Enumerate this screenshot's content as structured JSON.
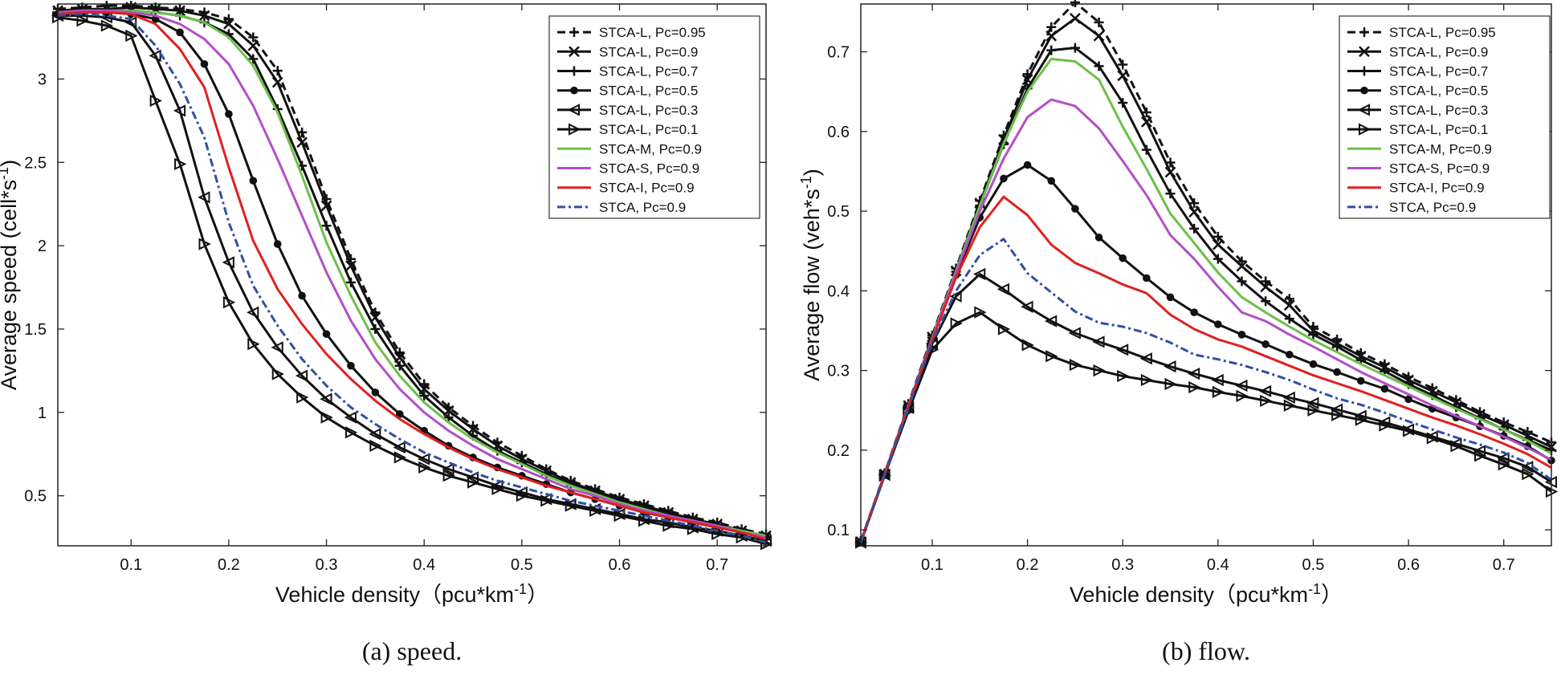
{
  "chart_data": [
    {
      "type": "line",
      "caption": "(a) speed.",
      "xlabel": "Vehicle density（pcu*km",
      "xlabel_sup": "-1",
      "xlabel_end": "）",
      "ylabel": "Average speed (cell*s",
      "ylabel_sup": "-1",
      "ylabel_end": ")",
      "xlim": [
        0.025,
        0.75
      ],
      "ylim": [
        0.2,
        3.45
      ],
      "xticks": [
        0.1,
        0.2,
        0.3,
        0.4,
        0.5,
        0.6,
        0.7
      ],
      "yticks": [
        0.5,
        1,
        1.5,
        2,
        2.5,
        3
      ],
      "grid": false,
      "legend_position": "top-right",
      "x": [
        0.025,
        0.05,
        0.075,
        0.1,
        0.125,
        0.15,
        0.175,
        0.2,
        0.225,
        0.25,
        0.275,
        0.3,
        0.325,
        0.35,
        0.375,
        0.4,
        0.425,
        0.45,
        0.475,
        0.5,
        0.525,
        0.55,
        0.575,
        0.6,
        0.625,
        0.65,
        0.675,
        0.7,
        0.725,
        0.75
      ],
      "series": [
        {
          "name": "STCA-L, Pc=0.95",
          "color": "#111111",
          "dash": "10,6",
          "marker": "plus",
          "values": [
            3.42,
            3.43,
            3.44,
            3.44,
            3.43,
            3.42,
            3.4,
            3.36,
            3.25,
            3.05,
            2.68,
            2.28,
            1.92,
            1.6,
            1.36,
            1.17,
            1.03,
            0.92,
            0.82,
            0.74,
            0.66,
            0.59,
            0.54,
            0.49,
            0.45,
            0.41,
            0.37,
            0.34,
            0.3,
            0.27
          ]
        },
        {
          "name": "STCA-L, Pc=0.9",
          "color": "#111111",
          "dash": "",
          "marker": "x",
          "values": [
            3.41,
            3.42,
            3.42,
            3.43,
            3.42,
            3.41,
            3.38,
            3.33,
            3.2,
            2.98,
            2.62,
            2.24,
            1.88,
            1.57,
            1.33,
            1.14,
            1.01,
            0.9,
            0.8,
            0.72,
            0.65,
            0.58,
            0.53,
            0.48,
            0.44,
            0.4,
            0.36,
            0.33,
            0.29,
            0.26
          ]
        },
        {
          "name": "STCA-L, Pc=0.7",
          "color": "#111111",
          "dash": "",
          "marker": "plus",
          "values": [
            3.4,
            3.41,
            3.41,
            3.41,
            3.4,
            3.38,
            3.34,
            3.27,
            3.12,
            2.82,
            2.48,
            2.12,
            1.78,
            1.5,
            1.28,
            1.1,
            0.97,
            0.86,
            0.77,
            0.7,
            0.63,
            0.57,
            0.52,
            0.47,
            0.43,
            0.39,
            0.35,
            0.32,
            0.28,
            0.25
          ]
        },
        {
          "name": "STCA-L, Pc=0.5",
          "color": "#111111",
          "dash": "",
          "marker": "dot",
          "values": [
            3.39,
            3.4,
            3.4,
            3.39,
            3.36,
            3.28,
            3.09,
            2.79,
            2.39,
            2.01,
            1.7,
            1.47,
            1.28,
            1.12,
            0.99,
            0.89,
            0.8,
            0.73,
            0.67,
            0.62,
            0.57,
            0.52,
            0.48,
            0.44,
            0.4,
            0.37,
            0.34,
            0.31,
            0.28,
            0.25
          ]
        },
        {
          "name": "STCA-L, Pc=0.3",
          "color": "#111111",
          "dash": "",
          "marker": "tri-left",
          "values": [
            3.38,
            3.38,
            3.37,
            3.34,
            3.14,
            2.81,
            2.29,
            1.9,
            1.6,
            1.39,
            1.22,
            1.08,
            0.97,
            0.87,
            0.79,
            0.72,
            0.66,
            0.61,
            0.56,
            0.52,
            0.48,
            0.45,
            0.42,
            0.39,
            0.36,
            0.34,
            0.31,
            0.29,
            0.26,
            0.23
          ]
        },
        {
          "name": "STCA-L, Pc=0.1",
          "color": "#111111",
          "dash": "",
          "marker": "tri-right",
          "values": [
            3.37,
            3.35,
            3.32,
            3.26,
            2.87,
            2.49,
            2.01,
            1.66,
            1.41,
            1.23,
            1.09,
            0.97,
            0.88,
            0.8,
            0.73,
            0.67,
            0.62,
            0.58,
            0.54,
            0.5,
            0.47,
            0.44,
            0.41,
            0.38,
            0.35,
            0.32,
            0.3,
            0.27,
            0.25,
            0.21
          ]
        },
        {
          "name": "STCA-M, Pc=0.9",
          "color": "#6cc04a",
          "dash": "",
          "marker": "none",
          "values": [
            3.4,
            3.41,
            3.41,
            3.41,
            3.4,
            3.38,
            3.34,
            3.25,
            3.08,
            2.8,
            2.42,
            2.02,
            1.7,
            1.42,
            1.22,
            1.06,
            0.94,
            0.84,
            0.76,
            0.69,
            0.62,
            0.56,
            0.51,
            0.46,
            0.42,
            0.38,
            0.35,
            0.32,
            0.29,
            0.26
          ]
        },
        {
          "name": "STCA-S, Pc=0.9",
          "color": "#b24fc6",
          "dash": "",
          "marker": "none",
          "values": [
            3.4,
            3.41,
            3.41,
            3.4,
            3.38,
            3.33,
            3.24,
            3.09,
            2.84,
            2.52,
            2.18,
            1.84,
            1.55,
            1.32,
            1.14,
            1.0,
            0.89,
            0.8,
            0.72,
            0.66,
            0.6,
            0.54,
            0.5,
            0.45,
            0.41,
            0.38,
            0.35,
            0.32,
            0.28,
            0.25
          ]
        },
        {
          "name": "STCA-I, Pc=0.9",
          "color": "#e02020",
          "dash": "",
          "marker": "none",
          "values": [
            3.39,
            3.4,
            3.4,
            3.39,
            3.33,
            3.18,
            2.95,
            2.47,
            2.03,
            1.74,
            1.53,
            1.35,
            1.2,
            1.07,
            0.96,
            0.87,
            0.79,
            0.72,
            0.66,
            0.61,
            0.56,
            0.52,
            0.48,
            0.44,
            0.4,
            0.37,
            0.34,
            0.31,
            0.28,
            0.24
          ]
        },
        {
          "name": "STCA, Pc=0.9",
          "color": "#3050a0",
          "dash": "10,4,3,4",
          "marker": "none",
          "values": [
            3.38,
            3.39,
            3.38,
            3.36,
            3.2,
            2.97,
            2.65,
            2.14,
            1.76,
            1.52,
            1.32,
            1.16,
            1.03,
            0.93,
            0.84,
            0.76,
            0.7,
            0.64,
            0.59,
            0.55,
            0.51,
            0.47,
            0.44,
            0.41,
            0.38,
            0.35,
            0.32,
            0.29,
            0.26,
            0.22
          ]
        }
      ]
    },
    {
      "type": "line",
      "caption": "(b) flow.",
      "xlabel": "Vehicle density（pcu*km",
      "xlabel_sup": "-1",
      "xlabel_end": "）",
      "ylabel": "Average flow (veh*s",
      "ylabel_sup": "-1",
      "ylabel_end": ")",
      "xlim": [
        0.025,
        0.75
      ],
      "ylim": [
        0.08,
        0.76
      ],
      "xticks": [
        0.1,
        0.2,
        0.3,
        0.4,
        0.5,
        0.6,
        0.7
      ],
      "yticks": [
        0.1,
        0.2,
        0.3,
        0.4,
        0.5,
        0.6,
        0.7
      ],
      "grid": false,
      "legend_position": "top-right",
      "x": [
        0.025,
        0.05,
        0.075,
        0.1,
        0.125,
        0.15,
        0.175,
        0.2,
        0.225,
        0.25,
        0.275,
        0.3,
        0.325,
        0.35,
        0.375,
        0.4,
        0.425,
        0.45,
        0.475,
        0.5,
        0.525,
        0.55,
        0.575,
        0.6,
        0.625,
        0.65,
        0.675,
        0.7,
        0.725,
        0.75
      ],
      "series": [
        {
          "name": "STCA-L, Pc=0.95",
          "color": "#111111",
          "dash": "10,6",
          "marker": "plus",
          "values": [
            0.086,
            0.171,
            0.258,
            0.344,
            0.428,
            0.513,
            0.595,
            0.672,
            0.731,
            0.762,
            0.737,
            0.684,
            0.624,
            0.561,
            0.51,
            0.468,
            0.437,
            0.412,
            0.39,
            0.355,
            0.339,
            0.322,
            0.308,
            0.292,
            0.278,
            0.263,
            0.248,
            0.235,
            0.223,
            0.21
          ]
        },
        {
          "name": "STCA-L, Pc=0.9",
          "color": "#111111",
          "dash": "",
          "marker": "x",
          "values": [
            0.085,
            0.17,
            0.256,
            0.342,
            0.425,
            0.51,
            0.59,
            0.665,
            0.72,
            0.742,
            0.72,
            0.67,
            0.612,
            0.549,
            0.499,
            0.458,
            0.431,
            0.405,
            0.382,
            0.35,
            0.334,
            0.318,
            0.304,
            0.288,
            0.274,
            0.26,
            0.245,
            0.232,
            0.218,
            0.204
          ]
        },
        {
          "name": "STCA-L, Pc=0.7",
          "color": "#111111",
          "dash": "",
          "marker": "plus",
          "values": [
            0.085,
            0.17,
            0.256,
            0.341,
            0.424,
            0.507,
            0.584,
            0.654,
            0.702,
            0.705,
            0.682,
            0.636,
            0.577,
            0.522,
            0.478,
            0.44,
            0.412,
            0.387,
            0.365,
            0.345,
            0.33,
            0.313,
            0.299,
            0.283,
            0.269,
            0.254,
            0.24,
            0.226,
            0.213,
            0.2
          ]
        },
        {
          "name": "STCA-L, Pc=0.5",
          "color": "#111111",
          "dash": "",
          "marker": "dot",
          "values": [
            0.085,
            0.17,
            0.255,
            0.339,
            0.42,
            0.492,
            0.541,
            0.558,
            0.538,
            0.503,
            0.467,
            0.441,
            0.416,
            0.392,
            0.373,
            0.358,
            0.345,
            0.333,
            0.32,
            0.308,
            0.298,
            0.287,
            0.277,
            0.264,
            0.252,
            0.241,
            0.23,
            0.218,
            0.205,
            0.187
          ]
        },
        {
          "name": "STCA-L, Pc=0.3",
          "color": "#111111",
          "dash": "",
          "marker": "tri-left",
          "values": [
            0.084,
            0.169,
            0.253,
            0.334,
            0.393,
            0.421,
            0.402,
            0.38,
            0.362,
            0.347,
            0.336,
            0.326,
            0.315,
            0.305,
            0.296,
            0.288,
            0.281,
            0.274,
            0.266,
            0.259,
            0.251,
            0.243,
            0.235,
            0.226,
            0.217,
            0.208,
            0.199,
            0.19,
            0.179,
            0.16
          ]
        },
        {
          "name": "STCA-L, Pc=0.1",
          "color": "#111111",
          "dash": "",
          "marker": "tri-right",
          "values": [
            0.084,
            0.168,
            0.249,
            0.326,
            0.359,
            0.373,
            0.352,
            0.332,
            0.318,
            0.307,
            0.3,
            0.293,
            0.288,
            0.283,
            0.279,
            0.273,
            0.268,
            0.262,
            0.256,
            0.25,
            0.244,
            0.238,
            0.231,
            0.224,
            0.215,
            0.205,
            0.193,
            0.182,
            0.17,
            0.148
          ]
        },
        {
          "name": "STCA-M, Pc=0.9",
          "color": "#6cc04a",
          "dash": "",
          "marker": "none",
          "values": [
            0.085,
            0.17,
            0.256,
            0.341,
            0.425,
            0.507,
            0.585,
            0.65,
            0.691,
            0.688,
            0.665,
            0.606,
            0.553,
            0.497,
            0.46,
            0.423,
            0.392,
            0.373,
            0.355,
            0.338,
            0.323,
            0.308,
            0.294,
            0.28,
            0.266,
            0.252,
            0.239,
            0.226,
            0.212,
            0.196
          ]
        },
        {
          "name": "STCA-S, Pc=0.9",
          "color": "#b24fc6",
          "dash": "",
          "marker": "none",
          "values": [
            0.085,
            0.17,
            0.256,
            0.34,
            0.423,
            0.5,
            0.566,
            0.618,
            0.64,
            0.632,
            0.604,
            0.563,
            0.52,
            0.47,
            0.44,
            0.405,
            0.373,
            0.362,
            0.345,
            0.33,
            0.314,
            0.298,
            0.284,
            0.27,
            0.256,
            0.243,
            0.23,
            0.217,
            0.203,
            0.188
          ]
        },
        {
          "name": "STCA-I, Pc=0.9",
          "color": "#e02020",
          "dash": "",
          "marker": "none",
          "values": [
            0.085,
            0.17,
            0.255,
            0.338,
            0.417,
            0.48,
            0.518,
            0.495,
            0.458,
            0.435,
            0.422,
            0.408,
            0.397,
            0.37,
            0.352,
            0.339,
            0.33,
            0.318,
            0.306,
            0.294,
            0.284,
            0.274,
            0.263,
            0.252,
            0.241,
            0.231,
            0.22,
            0.208,
            0.195,
            0.178
          ]
        },
        {
          "name": "STCA, Pc=0.9",
          "color": "#3050a0",
          "dash": "10,4,3,4",
          "marker": "none",
          "values": [
            0.084,
            0.169,
            0.253,
            0.336,
            0.4,
            0.445,
            0.465,
            0.422,
            0.398,
            0.374,
            0.36,
            0.355,
            0.347,
            0.335,
            0.32,
            0.314,
            0.307,
            0.298,
            0.288,
            0.276,
            0.265,
            0.257,
            0.247,
            0.236,
            0.226,
            0.216,
            0.207,
            0.197,
            0.184,
            0.163
          ]
        }
      ]
    }
  ]
}
